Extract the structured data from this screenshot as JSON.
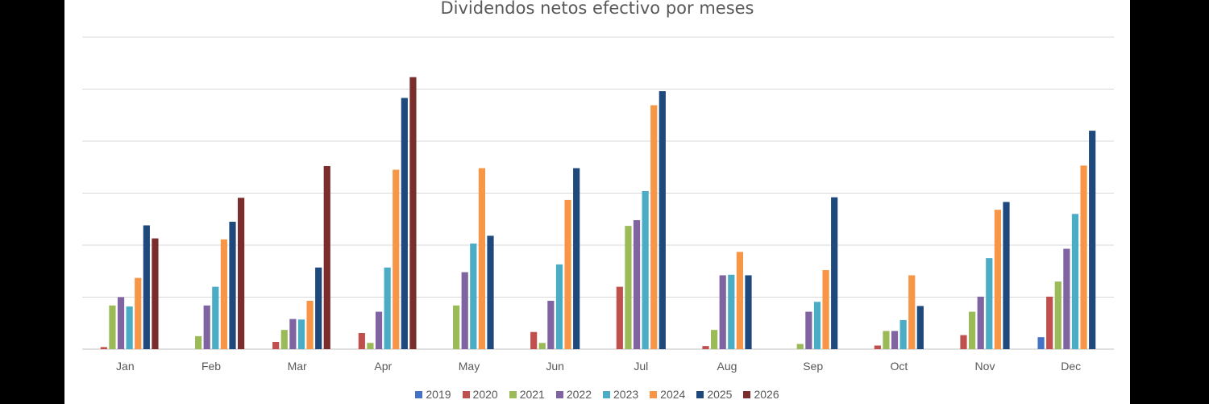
{
  "chart_data": {
    "type": "bar",
    "title": "Dividendos netos efectivo por meses",
    "xlabel": "",
    "ylabel": "",
    "ylim": [
      0,
      6
    ],
    "grid": true,
    "legend_position": "bottom",
    "categories": [
      "Jan",
      "Feb",
      "Mar",
      "Apr",
      "May",
      "Jun",
      "Jul",
      "Aug",
      "Sep",
      "Oct",
      "Nov",
      "Dec"
    ],
    "series": [
      {
        "name": "2019",
        "color": "#4472C4",
        "values": [
          0,
          0,
          0,
          0,
          0,
          0,
          0,
          0,
          0,
          0,
          0,
          0.23
        ]
      },
      {
        "name": "2020",
        "color": "#C0504D",
        "values": [
          0.04,
          0,
          0.14,
          0.31,
          0,
          0.33,
          1.2,
          0.06,
          0,
          0.07,
          0.27,
          1.01
        ]
      },
      {
        "name": "2021",
        "color": "#9BBB59",
        "values": [
          0.84,
          0.25,
          0.37,
          0.12,
          0.84,
          0.12,
          2.37,
          0.37,
          0.1,
          0.35,
          0.72,
          1.3
        ]
      },
      {
        "name": "2022",
        "color": "#8064A2",
        "values": [
          1.0,
          0.84,
          0.58,
          0.72,
          1.48,
          0.93,
          2.48,
          1.42,
          0.72,
          0.35,
          1.01,
          1.93
        ]
      },
      {
        "name": "2023",
        "color": "#4BACC6",
        "values": [
          0.82,
          1.2,
          0.57,
          1.57,
          2.03,
          1.63,
          3.04,
          1.43,
          0.91,
          0.56,
          1.75,
          2.6
        ]
      },
      {
        "name": "2024",
        "color": "#F79646",
        "values": [
          1.37,
          2.11,
          0.93,
          3.45,
          3.48,
          2.87,
          4.69,
          1.87,
          1.52,
          1.42,
          2.68,
          3.53
        ]
      },
      {
        "name": "2025",
        "color": "#1F497D",
        "values": [
          2.38,
          2.45,
          1.57,
          4.83,
          2.18,
          3.48,
          4.96,
          1.42,
          2.92,
          0.83,
          2.83,
          4.2
        ]
      },
      {
        "name": "2026",
        "color": "#7B2C2C",
        "values": [
          2.13,
          2.91,
          3.52,
          5.23,
          0,
          0,
          0,
          0,
          0,
          0,
          0,
          0
        ]
      }
    ]
  }
}
